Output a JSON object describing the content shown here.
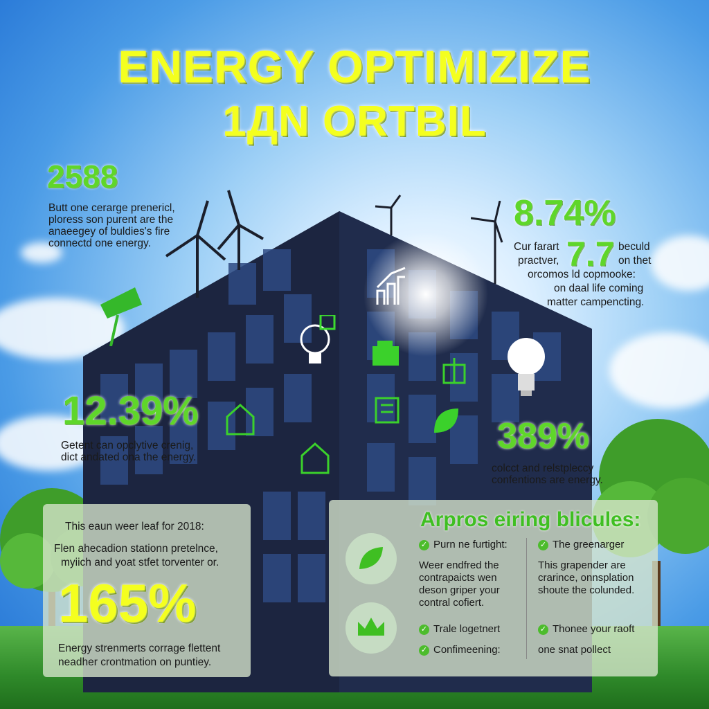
{
  "title": {
    "line1": "ENERGY OPTIMIZIZE",
    "line2": "1ДN ORTBIL"
  },
  "stats": {
    "s1": {
      "value": "2588",
      "text": [
        "Butt one cerarge prenericl,",
        "ploress son purent are the",
        "anaeegey of buldies's fire",
        "connectd one energy."
      ]
    },
    "s2": {
      "value": "8.74%",
      "value2": "7.7",
      "text": [
        "Cur farart",
        "bеculd",
        "practver,",
        "on thet",
        "orcomos ld copmooke:",
        "on daal life coming",
        "matter campencting."
      ]
    },
    "s3": {
      "value": "12.39%",
      "text": [
        "Getent can opclytive crenig,",
        "dict andated ona the energy."
      ]
    },
    "s4": {
      "value": "389%",
      "text": [
        "colcct and relstpleccy",
        "confentions are energy."
      ]
    }
  },
  "left_panel": {
    "line1": "This eaun weer leaf for 2018:",
    "line2": "Flen ahecadion stationn pretelnce,",
    "line3": "myiich and yoat stfet torventer or.",
    "big": "165%",
    "foot1": "Energy strenmerts corrage flettent",
    "foot2": "neadher crontmation on puntiey."
  },
  "right_panel": {
    "heading": "Arpros eiring blicules:",
    "col1": {
      "check1": "Purn ne furtight:",
      "body": [
        "Weer endfred the",
        "contrapaicts wen",
        "deson griper your",
        "contral cofiert."
      ],
      "check2": "Trale logetnert",
      "check3": "Confimeening:"
    },
    "col2": {
      "check1": "The greenarger",
      "body": [
        "This grapender are",
        "crarince, onnsplation",
        "shoute the colunded."
      ],
      "check2": "Thonee your raoft",
      "check3": "one snat pollect"
    }
  },
  "colors": {
    "title": "#f4ff1f",
    "stat": "#5fd62a",
    "building": "#1c2540",
    "check": "#4cbc2c"
  },
  "icons": [
    "wind-turbine-icon",
    "solar-panel-icon",
    "lightbulb-icon",
    "leaf-icon",
    "crown-icon",
    "house-icon",
    "chart-arrow-icon",
    "recycle-bulb-icon"
  ]
}
